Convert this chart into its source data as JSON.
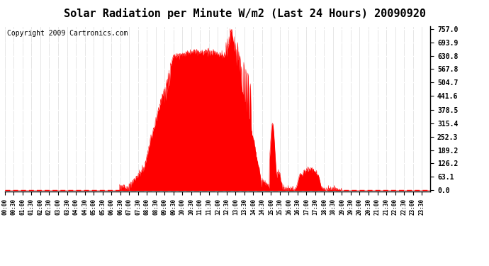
{
  "title": "Solar Radiation per Minute W/m2 (Last 24 Hours) 20090920",
  "copyright": "Copyright 2009 Cartronics.com",
  "yticks": [
    0.0,
    63.1,
    126.2,
    189.2,
    252.3,
    315.4,
    378.5,
    441.6,
    504.7,
    567.8,
    630.8,
    693.9,
    757.0
  ],
  "ymax": 757.0,
  "ymin": 0.0,
  "fill_color": "red",
  "line_color": "red",
  "background_color": "#ffffff",
  "baseline_color": "red",
  "title_fontsize": 11,
  "copyright_fontsize": 7
}
